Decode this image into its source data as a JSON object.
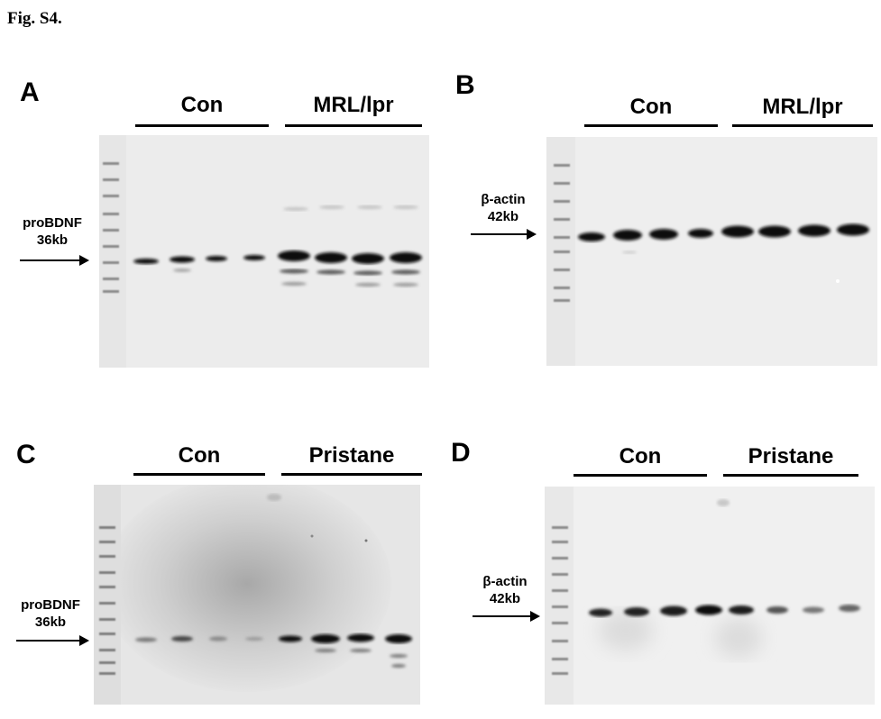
{
  "figure": {
    "title": "Fig. S4."
  },
  "panels": {
    "A": {
      "letter": "A",
      "groups": [
        {
          "label": "Con"
        },
        {
          "label": "MRL/lpr"
        }
      ],
      "marker": {
        "name": "proBDNF",
        "size": "36kb"
      }
    },
    "B": {
      "letter": "B",
      "groups": [
        {
          "label": "Con"
        },
        {
          "label": "MRL/lpr"
        }
      ],
      "marker": {
        "name": "β-actin",
        "size": "42kb"
      }
    },
    "C": {
      "letter": "C",
      "groups": [
        {
          "label": "Con"
        },
        {
          "label": "Pristane"
        }
      ],
      "marker": {
        "name": "proBDNF",
        "size": "36kb"
      }
    },
    "D": {
      "letter": "D",
      "groups": [
        {
          "label": "Con"
        },
        {
          "label": "Pristane"
        }
      ],
      "marker": {
        "name": "β-actin",
        "size": "42kb"
      }
    }
  },
  "colors": {
    "membrane": "#ececec",
    "band": "#111111",
    "ink": "#000000"
  }
}
